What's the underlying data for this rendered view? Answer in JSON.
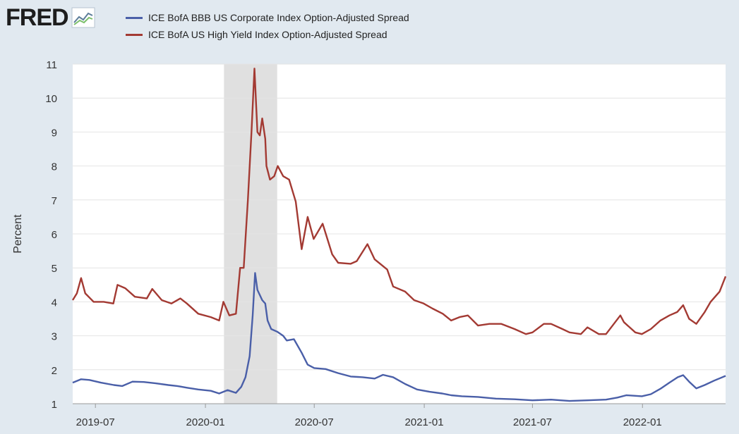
{
  "logo": {
    "text": "FRED"
  },
  "chart_data": {
    "type": "line",
    "ylabel": "Percent",
    "ylim": [
      1,
      11
    ],
    "yticks": [
      1,
      2,
      3,
      4,
      5,
      6,
      7,
      8,
      9,
      10,
      11
    ],
    "xlim": [
      "2019-05-24",
      "2022-05-20"
    ],
    "xticks": [
      "2019-07",
      "2020-01",
      "2020-07",
      "2021-01",
      "2021-07",
      "2022-01"
    ],
    "grid": true,
    "legend_position": "top-left",
    "recession": {
      "start": "2020-02-01",
      "end": "2020-04-30"
    },
    "series": [
      {
        "name": "ICE BofA BBB US Corporate Index Option-Adjusted Spread",
        "color": "#4a5fa8",
        "points": [
          [
            "2019-05-24",
            1.62
          ],
          [
            "2019-06-07",
            1.72
          ],
          [
            "2019-06-21",
            1.7
          ],
          [
            "2019-07-10",
            1.62
          ],
          [
            "2019-08-01",
            1.55
          ],
          [
            "2019-08-15",
            1.52
          ],
          [
            "2019-09-01",
            1.65
          ],
          [
            "2019-09-20",
            1.64
          ],
          [
            "2019-10-10",
            1.6
          ],
          [
            "2019-10-31",
            1.55
          ],
          [
            "2019-11-15",
            1.52
          ],
          [
            "2019-12-01",
            1.47
          ],
          [
            "2019-12-20",
            1.42
          ],
          [
            "2020-01-10",
            1.38
          ],
          [
            "2020-01-24",
            1.3
          ],
          [
            "2020-02-07",
            1.4
          ],
          [
            "2020-02-21",
            1.32
          ],
          [
            "2020-03-01",
            1.5
          ],
          [
            "2020-03-08",
            1.78
          ],
          [
            "2020-03-15",
            2.4
          ],
          [
            "2020-03-20",
            3.6
          ],
          [
            "2020-03-24",
            4.85
          ],
          [
            "2020-03-28",
            4.35
          ],
          [
            "2020-04-05",
            4.05
          ],
          [
            "2020-04-10",
            3.95
          ],
          [
            "2020-04-14",
            3.45
          ],
          [
            "2020-04-20",
            3.2
          ],
          [
            "2020-04-30",
            3.12
          ],
          [
            "2020-05-10",
            3.0
          ],
          [
            "2020-05-16",
            2.86
          ],
          [
            "2020-05-28",
            2.9
          ],
          [
            "2020-06-10",
            2.5
          ],
          [
            "2020-06-20",
            2.15
          ],
          [
            "2020-07-01",
            2.05
          ],
          [
            "2020-07-20",
            2.02
          ],
          [
            "2020-08-10",
            1.9
          ],
          [
            "2020-08-31",
            1.8
          ],
          [
            "2020-09-20",
            1.78
          ],
          [
            "2020-10-10",
            1.74
          ],
          [
            "2020-10-24",
            1.85
          ],
          [
            "2020-11-10",
            1.78
          ],
          [
            "2020-11-30",
            1.58
          ],
          [
            "2020-12-20",
            1.42
          ],
          [
            "2021-01-10",
            1.35
          ],
          [
            "2021-01-31",
            1.3
          ],
          [
            "2021-02-15",
            1.25
          ],
          [
            "2021-03-05",
            1.22
          ],
          [
            "2021-04-01",
            1.2
          ],
          [
            "2021-05-01",
            1.15
          ],
          [
            "2021-06-01",
            1.13
          ],
          [
            "2021-07-01",
            1.1
          ],
          [
            "2021-08-01",
            1.12
          ],
          [
            "2021-09-01",
            1.08
          ],
          [
            "2021-10-01",
            1.1
          ],
          [
            "2021-11-01",
            1.12
          ],
          [
            "2021-11-20",
            1.18
          ],
          [
            "2021-12-05",
            1.25
          ],
          [
            "2021-12-31",
            1.22
          ],
          [
            "2022-01-15",
            1.28
          ],
          [
            "2022-02-01",
            1.45
          ],
          [
            "2022-02-15",
            1.62
          ],
          [
            "2022-03-01",
            1.78
          ],
          [
            "2022-03-10",
            1.84
          ],
          [
            "2022-03-20",
            1.65
          ],
          [
            "2022-04-01",
            1.45
          ],
          [
            "2022-04-15",
            1.55
          ],
          [
            "2022-05-01",
            1.68
          ],
          [
            "2022-05-20",
            1.82
          ]
        ]
      },
      {
        "name": "ICE BofA US High Yield Index Option-Adjusted Spread",
        "color": "#a33a33",
        "points": [
          [
            "2019-05-24",
            4.05
          ],
          [
            "2019-05-31",
            4.25
          ],
          [
            "2019-06-07",
            4.7
          ],
          [
            "2019-06-14",
            4.25
          ],
          [
            "2019-06-28",
            4.0
          ],
          [
            "2019-07-15",
            4.0
          ],
          [
            "2019-07-31",
            3.95
          ],
          [
            "2019-08-07",
            4.5
          ],
          [
            "2019-08-20",
            4.4
          ],
          [
            "2019-09-05",
            4.15
          ],
          [
            "2019-09-25",
            4.1
          ],
          [
            "2019-10-04",
            4.38
          ],
          [
            "2019-10-20",
            4.05
          ],
          [
            "2019-11-05",
            3.95
          ],
          [
            "2019-11-20",
            4.1
          ],
          [
            "2019-12-01",
            3.95
          ],
          [
            "2019-12-20",
            3.65
          ],
          [
            "2020-01-10",
            3.55
          ],
          [
            "2020-01-24",
            3.45
          ],
          [
            "2020-01-31",
            4.0
          ],
          [
            "2020-02-10",
            3.6
          ],
          [
            "2020-02-21",
            3.65
          ],
          [
            "2020-02-28",
            5.0
          ],
          [
            "2020-03-05",
            5.0
          ],
          [
            "2020-03-12",
            7.0
          ],
          [
            "2020-03-18",
            9.0
          ],
          [
            "2020-03-23",
            10.87
          ],
          [
            "2020-03-28",
            9.0
          ],
          [
            "2020-04-01",
            8.9
          ],
          [
            "2020-04-05",
            9.4
          ],
          [
            "2020-04-10",
            8.8
          ],
          [
            "2020-04-12",
            8.0
          ],
          [
            "2020-04-18",
            7.6
          ],
          [
            "2020-04-25",
            7.7
          ],
          [
            "2020-05-01",
            8.0
          ],
          [
            "2020-05-10",
            7.7
          ],
          [
            "2020-05-20",
            7.6
          ],
          [
            "2020-05-31",
            6.95
          ],
          [
            "2020-06-10",
            5.55
          ],
          [
            "2020-06-20",
            6.5
          ],
          [
            "2020-06-30",
            5.85
          ],
          [
            "2020-07-15",
            6.3
          ],
          [
            "2020-07-31",
            5.4
          ],
          [
            "2020-08-10",
            5.15
          ],
          [
            "2020-08-31",
            5.12
          ],
          [
            "2020-09-10",
            5.2
          ],
          [
            "2020-09-28",
            5.7
          ],
          [
            "2020-10-10",
            5.25
          ],
          [
            "2020-10-31",
            4.95
          ],
          [
            "2020-11-10",
            4.45
          ],
          [
            "2020-11-30",
            4.3
          ],
          [
            "2020-12-15",
            4.05
          ],
          [
            "2020-12-31",
            3.95
          ],
          [
            "2021-01-15",
            3.8
          ],
          [
            "2021-02-01",
            3.65
          ],
          [
            "2021-02-15",
            3.45
          ],
          [
            "2021-03-01",
            3.55
          ],
          [
            "2021-03-15",
            3.6
          ],
          [
            "2021-04-01",
            3.3
          ],
          [
            "2021-04-20",
            3.35
          ],
          [
            "2021-05-10",
            3.35
          ],
          [
            "2021-06-01",
            3.2
          ],
          [
            "2021-06-20",
            3.05
          ],
          [
            "2021-07-01",
            3.1
          ],
          [
            "2021-07-20",
            3.35
          ],
          [
            "2021-08-01",
            3.35
          ],
          [
            "2021-08-20",
            3.2
          ],
          [
            "2021-09-01",
            3.1
          ],
          [
            "2021-09-20",
            3.05
          ],
          [
            "2021-10-01",
            3.25
          ],
          [
            "2021-10-20",
            3.05
          ],
          [
            "2021-11-01",
            3.05
          ],
          [
            "2021-11-25",
            3.6
          ],
          [
            "2021-12-01",
            3.4
          ],
          [
            "2021-12-20",
            3.1
          ],
          [
            "2021-12-31",
            3.05
          ],
          [
            "2022-01-15",
            3.2
          ],
          [
            "2022-01-31",
            3.45
          ],
          [
            "2022-02-15",
            3.6
          ],
          [
            "2022-02-28",
            3.7
          ],
          [
            "2022-03-10",
            3.9
          ],
          [
            "2022-03-20",
            3.5
          ],
          [
            "2022-04-01",
            3.35
          ],
          [
            "2022-04-15",
            3.7
          ],
          [
            "2022-04-25",
            4.0
          ],
          [
            "2022-05-10",
            4.3
          ],
          [
            "2022-05-20",
            4.75
          ]
        ]
      }
    ]
  }
}
